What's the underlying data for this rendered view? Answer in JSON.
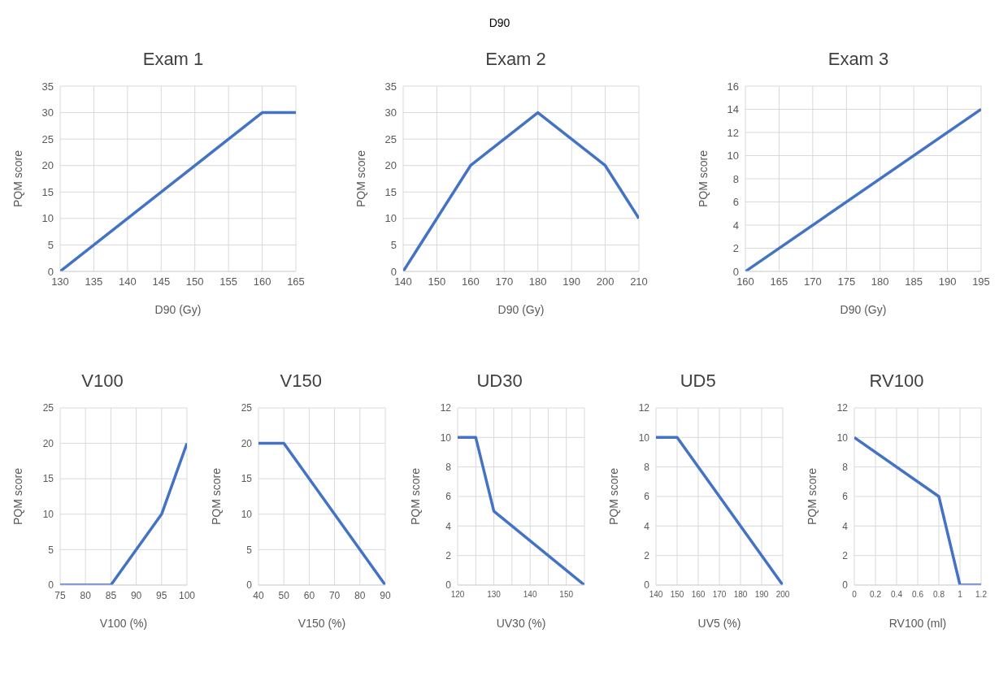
{
  "chart_data": [
    {
      "type": "line",
      "title": "Exam 1",
      "annotations": [
        "D90"
      ],
      "xlabel": "D90 (Gy)",
      "ylabel": "PQM score",
      "x": [
        130,
        160,
        165
      ],
      "values": [
        0,
        30,
        30
      ],
      "color": "#4472c4",
      "xlim": [
        130,
        165
      ],
      "xticks": [
        130,
        135,
        140,
        145,
        150,
        155,
        160,
        165
      ],
      "ylim": [
        0,
        35
      ],
      "yticks": [
        0,
        5,
        10,
        15,
        20,
        25,
        30,
        35
      ],
      "grid": true,
      "marker": "none",
      "line_style": "solid"
    },
    {
      "type": "line",
      "title": "Exam 2",
      "xlabel": "D90 (Gy)",
      "ylabel": "PQM score",
      "x": [
        140,
        160,
        180,
        200,
        210
      ],
      "values": [
        0,
        20,
        30,
        20,
        10
      ],
      "color": "#4472c4",
      "xlim": [
        140,
        210
      ],
      "xticks": [
        140,
        150,
        160,
        170,
        180,
        190,
        200,
        210
      ],
      "ylim": [
        0,
        35
      ],
      "yticks": [
        0,
        5,
        10,
        15,
        20,
        25,
        30,
        35
      ],
      "grid": true,
      "marker": "none",
      "line_style": "solid"
    },
    {
      "type": "line",
      "title": "Exam 3",
      "xlabel": "D90 (Gy)",
      "ylabel": "PQM score",
      "x": [
        160,
        195
      ],
      "values": [
        0,
        14
      ],
      "color": "#4472c4",
      "xlim": [
        160,
        195
      ],
      "xticks": [
        160,
        165,
        170,
        175,
        180,
        185,
        190,
        195
      ],
      "ylim": [
        0,
        16
      ],
      "yticks": [
        0,
        2,
        4,
        6,
        8,
        10,
        12,
        14,
        16
      ],
      "grid": true,
      "marker": "none",
      "line_style": "solid"
    },
    {
      "type": "line",
      "title": "V100",
      "xlabel": "V100 (%)",
      "ylabel": "PQM score",
      "x": [
        75,
        85,
        95,
        100
      ],
      "values": [
        0,
        0,
        10,
        20
      ],
      "color": "#4472c4",
      "xlim": [
        75,
        100
      ],
      "xticks": [
        75,
        80,
        85,
        90,
        95,
        100
      ],
      "ylim": [
        0,
        25
      ],
      "yticks": [
        0,
        5,
        10,
        15,
        20,
        25
      ],
      "grid": true,
      "marker": "none",
      "line_style": "solid"
    },
    {
      "type": "line",
      "title": "V150",
      "xlabel": "V150 (%)",
      "ylabel": "PQM score",
      "x": [
        40,
        50,
        90
      ],
      "values": [
        20,
        20,
        0
      ],
      "color": "#4472c4",
      "xlim": [
        40,
        90
      ],
      "xticks": [
        40,
        50,
        60,
        70,
        80,
        90
      ],
      "ylim": [
        0,
        25
      ],
      "yticks": [
        0,
        5,
        10,
        15,
        20,
        25
      ],
      "grid": true,
      "marker": "none",
      "line_style": "solid"
    },
    {
      "type": "line",
      "title": "UD30",
      "xlabel": "UV30 (%)",
      "ylabel": "PQM score",
      "x": [
        120,
        125,
        130,
        155
      ],
      "values": [
        10,
        10,
        5,
        0
      ],
      "color": "#4472c4",
      "xlim": [
        120,
        155
      ],
      "xticks": [
        120,
        {
          "value": 125,
          "label": null
        },
        130,
        {
          "value": 135,
          "label": null
        },
        140,
        {
          "value": 145,
          "label": null
        },
        150,
        {
          "value": 155,
          "label": null
        }
      ],
      "ylim": [
        0,
        12
      ],
      "yticks": [
        0,
        2,
        4,
        6,
        8,
        10,
        12
      ],
      "grid": true,
      "marker": "none",
      "line_style": "solid"
    },
    {
      "type": "line",
      "title": "UD5",
      "xlabel": "UV5 (%)",
      "ylabel": "PQM score",
      "x": [
        140,
        150,
        200
      ],
      "values": [
        10,
        10,
        0
      ],
      "color": "#4472c4",
      "xlim": [
        140,
        200
      ],
      "xticks": [
        140,
        150,
        160,
        170,
        180,
        190,
        200
      ],
      "ylim": [
        0,
        12
      ],
      "yticks": [
        0,
        2,
        4,
        6,
        8,
        10,
        12
      ],
      "grid": true,
      "marker": "none",
      "line_style": "solid"
    },
    {
      "type": "line",
      "title": "RV100",
      "xlabel": "RV100 (ml)",
      "ylabel": "PQM score",
      "x": [
        0,
        0.8,
        1,
        1.2
      ],
      "values": [
        10,
        6,
        0,
        0
      ],
      "color": "#4472c4",
      "xlim": [
        0,
        1.2
      ],
      "xticks": [
        0,
        0.2,
        0.4,
        0.6,
        0.8,
        1,
        1.2
      ],
      "ylim": [
        0,
        12
      ],
      "yticks": [
        0,
        2,
        4,
        6,
        8,
        10,
        12
      ],
      "grid": true,
      "marker": "none",
      "line_style": "solid"
    }
  ]
}
